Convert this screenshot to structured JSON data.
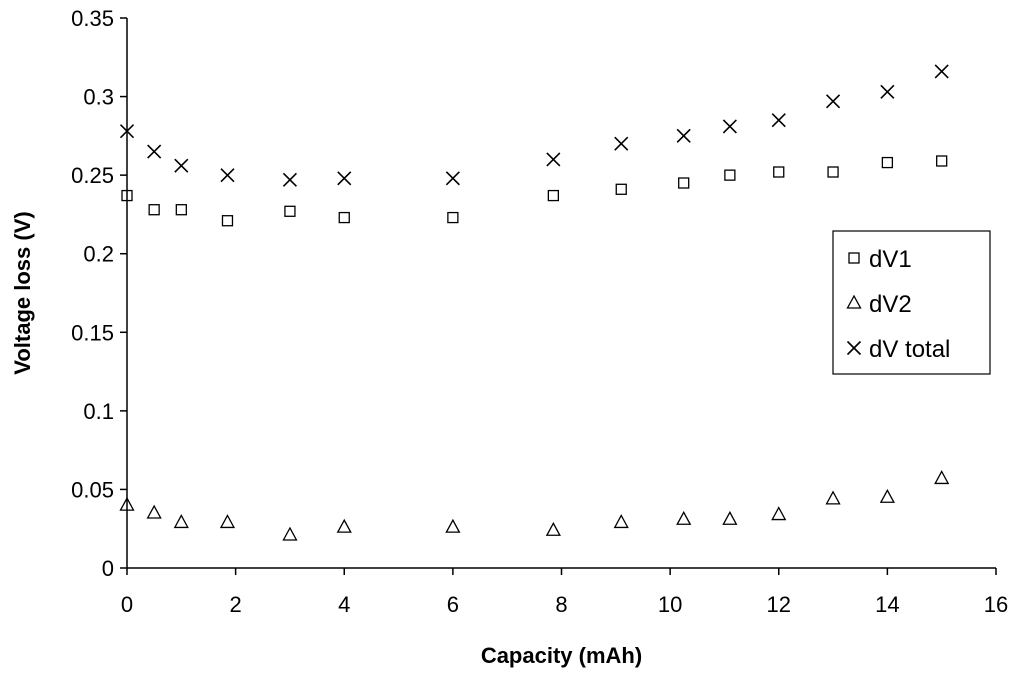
{
  "chart_data": {
    "type": "scatter",
    "title": "",
    "xlabel": "Capacity (mAh)",
    "ylabel": "Voltage loss (V)",
    "xlim": [
      0,
      16
    ],
    "ylim": [
      0,
      0.35
    ],
    "xticks": [
      "0",
      "2",
      "4",
      "6",
      "8",
      "10",
      "12",
      "14",
      "16"
    ],
    "yticks": [
      "0",
      "0.05",
      "0.1",
      "0.15",
      "0.2",
      "0.25",
      "0.3",
      "0.35"
    ],
    "grid": false,
    "legend_position": "right",
    "series": [
      {
        "name": "dV1",
        "marker": "square",
        "x": [
          0,
          0.5,
          1,
          1.85,
          3,
          4,
          6,
          7.85,
          9.1,
          10.25,
          11.1,
          12,
          13,
          14,
          15
        ],
        "y": [
          0.237,
          0.228,
          0.228,
          0.221,
          0.227,
          0.223,
          0.223,
          0.237,
          0.241,
          0.245,
          0.25,
          0.252,
          0.252,
          0.258,
          0.259
        ]
      },
      {
        "name": "dV2",
        "marker": "triangle",
        "x": [
          0,
          0.5,
          1,
          1.85,
          3,
          4,
          6,
          7.85,
          9.1,
          10.25,
          11.1,
          12,
          13,
          14,
          15
        ],
        "y": [
          0.04,
          0.035,
          0.029,
          0.029,
          0.021,
          0.026,
          0.026,
          0.024,
          0.029,
          0.031,
          0.031,
          0.034,
          0.044,
          0.045,
          0.057
        ]
      },
      {
        "name": "dV total",
        "marker": "x",
        "x": [
          0,
          0.5,
          1,
          1.85,
          3,
          4,
          6,
          7.85,
          9.1,
          10.25,
          11.1,
          12,
          13,
          14,
          15
        ],
        "y": [
          0.278,
          0.265,
          0.256,
          0.25,
          0.247,
          0.248,
          0.248,
          0.26,
          0.27,
          0.275,
          0.281,
          0.285,
          0.297,
          0.303,
          0.316
        ]
      }
    ]
  }
}
